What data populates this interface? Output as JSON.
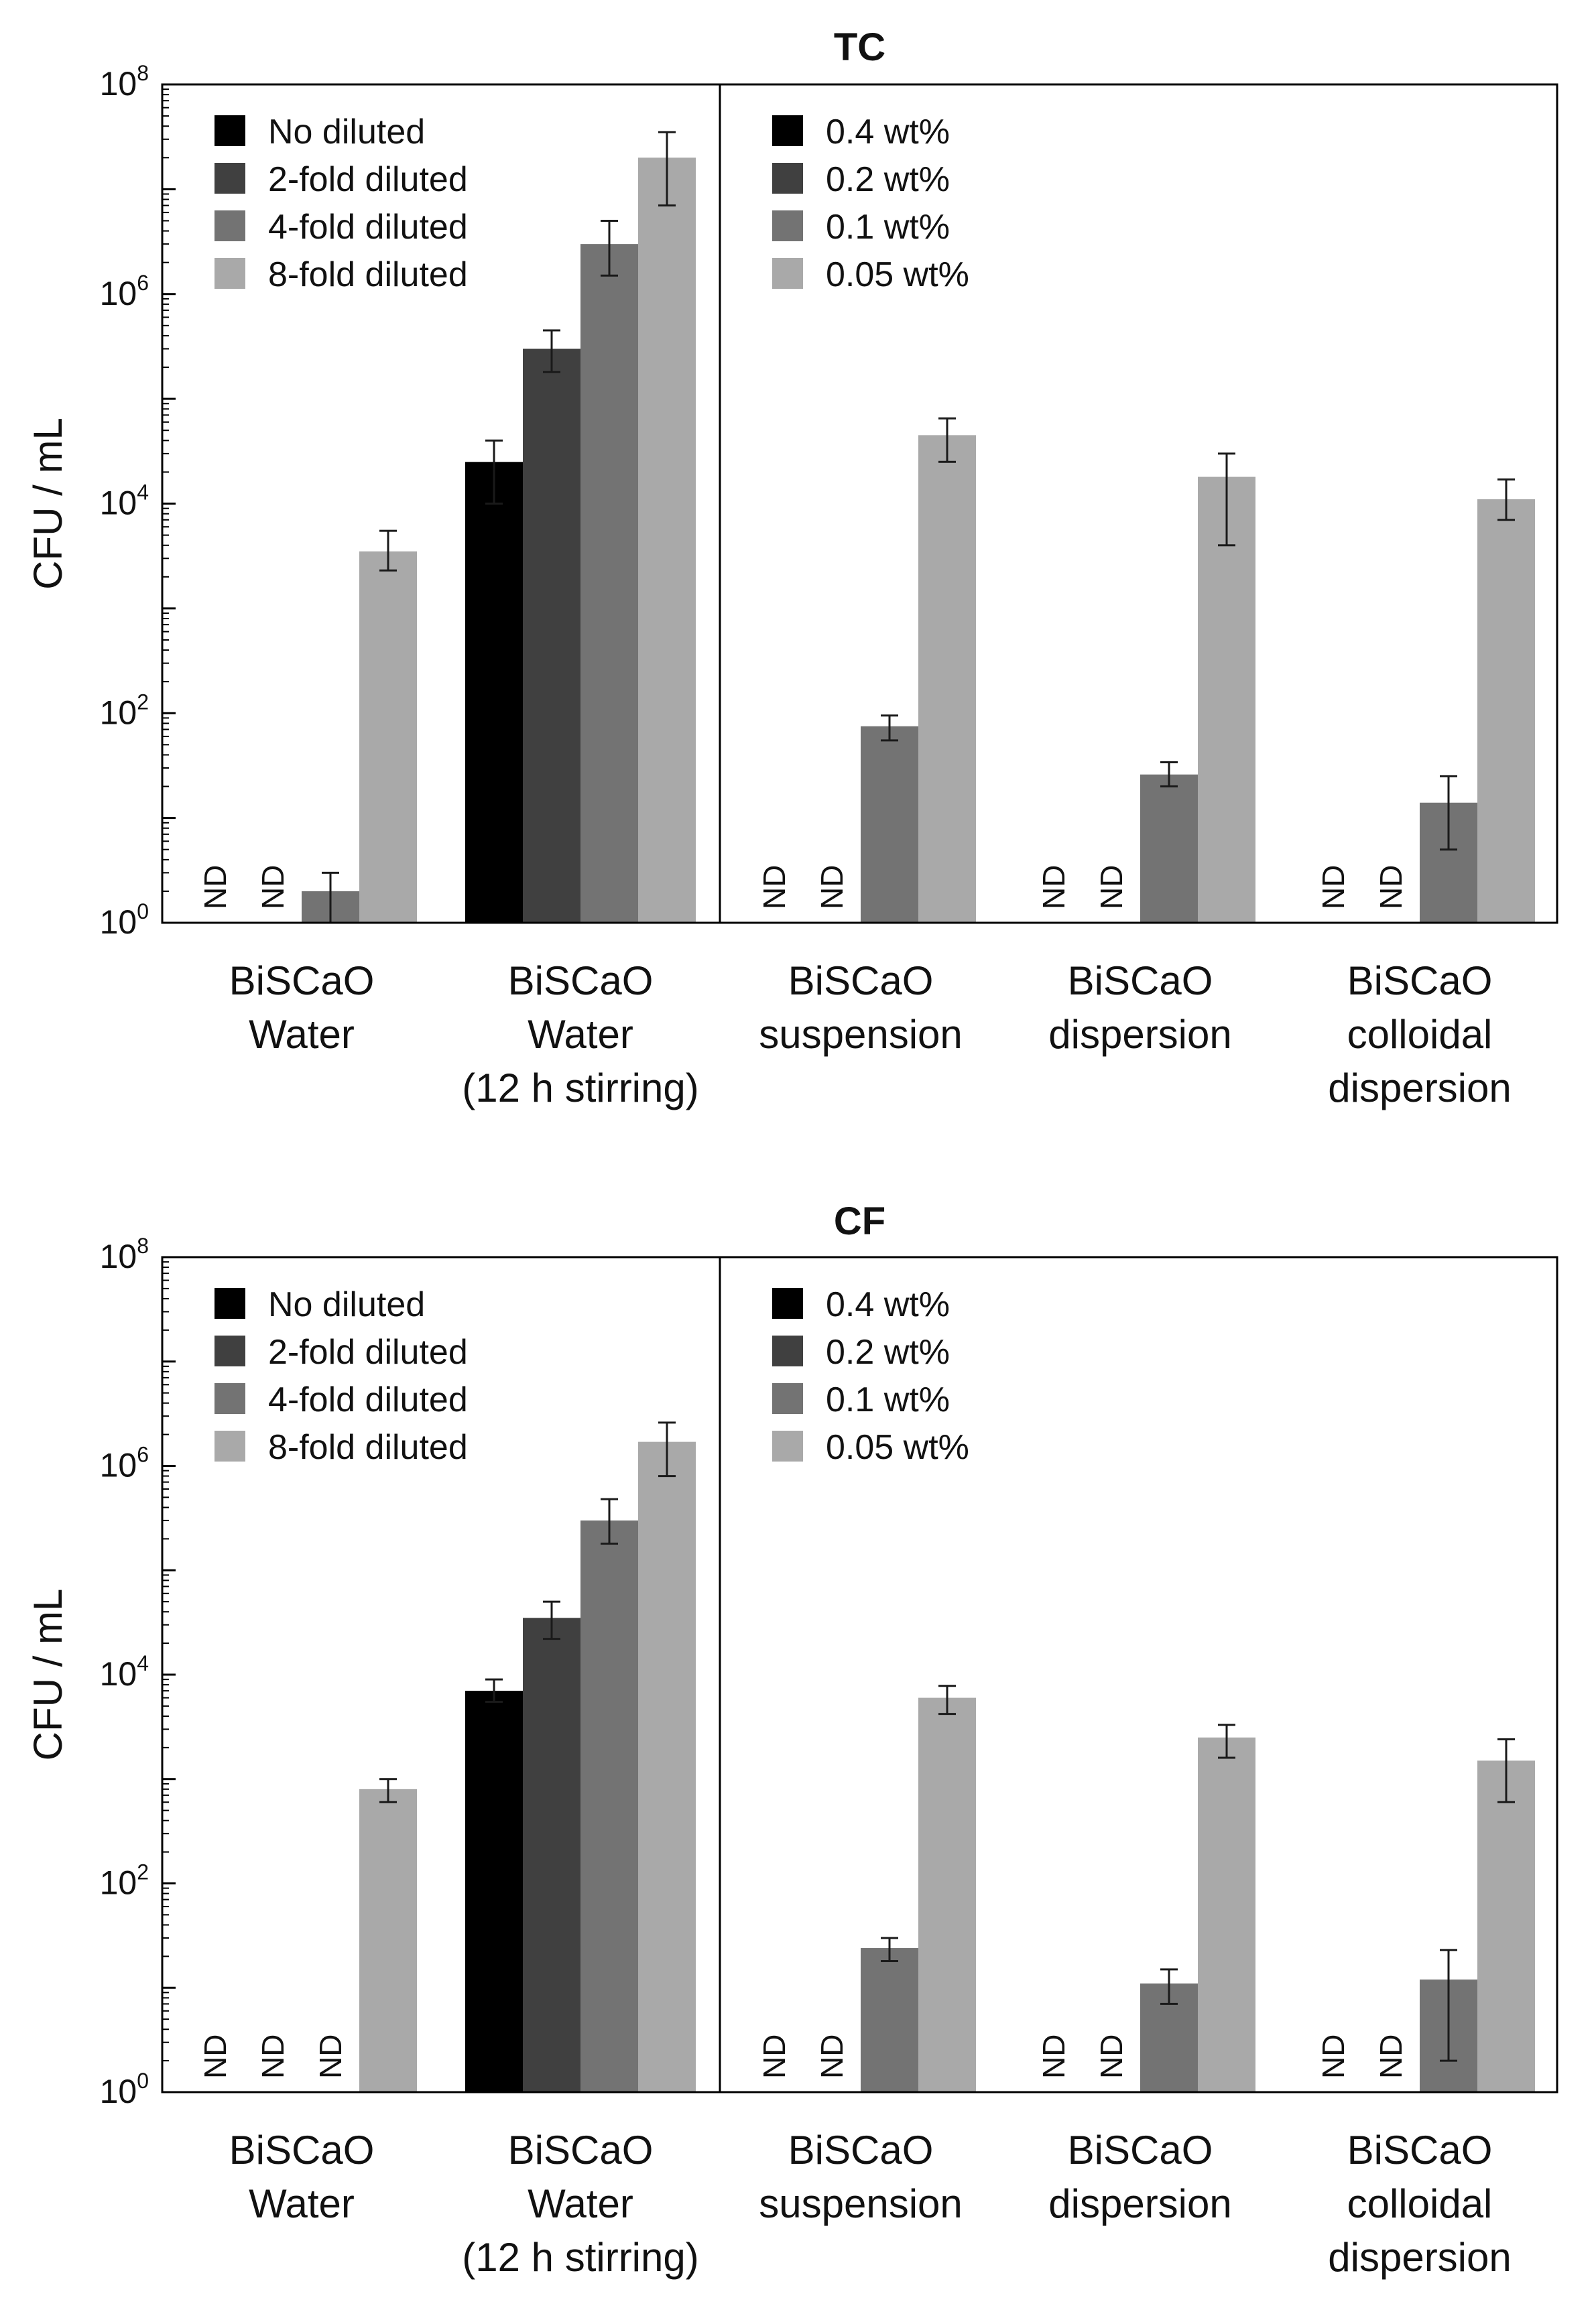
{
  "chart_data": [
    {
      "type": "bar",
      "title": "TC",
      "ylabel": "CFU / mL",
      "yscale": "log",
      "ylim": [
        1,
        100000000
      ],
      "yticks": [
        {
          "base": "10",
          "exp": "0"
        },
        {
          "base": "10",
          "exp": "2"
        },
        {
          "base": "10",
          "exp": "4"
        },
        {
          "base": "10",
          "exp": "6"
        },
        {
          "base": "10",
          "exp": "8"
        }
      ],
      "colors": [
        "#000000",
        "#404040",
        "#737373",
        "#a9a9a9"
      ],
      "nd_label": "ND",
      "panels": [
        {
          "legend": [
            "No diluted",
            "2-fold diluted",
            "4-fold diluted",
            "8-fold diluted"
          ],
          "groups": [
            {
              "label": [
                "BiSCaO",
                "Water"
              ],
              "values": [
                null,
                null,
                2,
                3500
              ],
              "errors": [
                [
                  null,
                  null
                ],
                [
                  null,
                  null
                ],
                [
                  1,
                  3
                ],
                [
                  2300,
                  5500
                ]
              ]
            },
            {
              "label": [
                "BiSCaO",
                "Water",
                "(12 h stirring)"
              ],
              "values": [
                25000,
                300000,
                3000000,
                20000000
              ],
              "errors": [
                [
                  10000,
                  40000
                ],
                [
                  180000,
                  450000
                ],
                [
                  1500000,
                  5000000
                ],
                [
                  7000000,
                  35000000
                ]
              ]
            }
          ]
        },
        {
          "legend": [
            "0.4 wt%",
            "0.2 wt%",
            "0.1 wt%",
            "0.05 wt%"
          ],
          "groups": [
            {
              "label": [
                "BiSCaO",
                "suspension"
              ],
              "values": [
                null,
                null,
                75,
                45000
              ],
              "errors": [
                [
                  null,
                  null
                ],
                [
                  null,
                  null
                ],
                [
                  55,
                  95
                ],
                [
                  25000,
                  65000
                ]
              ]
            },
            {
              "label": [
                "BiSCaO",
                "dispersion"
              ],
              "values": [
                null,
                null,
                26,
                18000
              ],
              "errors": [
                [
                  null,
                  null
                ],
                [
                  null,
                  null
                ],
                [
                  20,
                  34
                ],
                [
                  4000,
                  30000
                ]
              ]
            },
            {
              "label": [
                "BiSCaO",
                "colloidal",
                "dispersion"
              ],
              "values": [
                null,
                null,
                14,
                11000
              ],
              "errors": [
                [
                  null,
                  null
                ],
                [
                  null,
                  null
                ],
                [
                  5,
                  25
                ],
                [
                  7000,
                  17000
                ]
              ]
            }
          ]
        }
      ]
    },
    {
      "type": "bar",
      "title": "CF",
      "ylabel": "CFU / mL",
      "yscale": "log",
      "ylim": [
        1,
        100000000
      ],
      "yticks": [
        {
          "base": "10",
          "exp": "0"
        },
        {
          "base": "10",
          "exp": "2"
        },
        {
          "base": "10",
          "exp": "4"
        },
        {
          "base": "10",
          "exp": "6"
        },
        {
          "base": "10",
          "exp": "8"
        }
      ],
      "colors": [
        "#000000",
        "#404040",
        "#737373",
        "#a9a9a9"
      ],
      "nd_label": "ND",
      "panels": [
        {
          "legend": [
            "No diluted",
            "2-fold diluted",
            "4-fold diluted",
            "8-fold diluted"
          ],
          "groups": [
            {
              "label": [
                "BiSCaO",
                "Water"
              ],
              "values": [
                null,
                null,
                null,
                800
              ],
              "errors": [
                [
                  null,
                  null
                ],
                [
                  null,
                  null
                ],
                [
                  null,
                  null
                ],
                [
                  600,
                  1000
                ]
              ]
            },
            {
              "label": [
                "BiSCaO",
                "Water",
                "(12 h stirring)"
              ],
              "values": [
                7000,
                35000,
                300000,
                1700000
              ],
              "errors": [
                [
                  5500,
                  9000
                ],
                [
                  22000,
                  50000
                ],
                [
                  180000,
                  480000
                ],
                [
                  800000,
                  2600000
                ]
              ]
            }
          ]
        },
        {
          "legend": [
            "0.4 wt%",
            "0.2 wt%",
            "0.1 wt%",
            "0.05 wt%"
          ],
          "groups": [
            {
              "label": [
                "BiSCaO",
                "suspension"
              ],
              "values": [
                null,
                null,
                24,
                6000
              ],
              "errors": [
                [
                  null,
                  null
                ],
                [
                  null,
                  null
                ],
                [
                  18,
                  30
                ],
                [
                  4200,
                  7800
                ]
              ]
            },
            {
              "label": [
                "BiSCaO",
                "dispersion"
              ],
              "values": [
                null,
                null,
                11,
                2500
              ],
              "errors": [
                [
                  null,
                  null
                ],
                [
                  null,
                  null
                ],
                [
                  7,
                  15
                ],
                [
                  1600,
                  3300
                ]
              ]
            },
            {
              "label": [
                "BiSCaO",
                "colloidal",
                "dispersion"
              ],
              "values": [
                null,
                null,
                12,
                1500
              ],
              "errors": [
                [
                  null,
                  null
                ],
                [
                  null,
                  null
                ],
                [
                  2,
                  23
                ],
                [
                  600,
                  2400
                ]
              ]
            }
          ]
        }
      ]
    }
  ]
}
